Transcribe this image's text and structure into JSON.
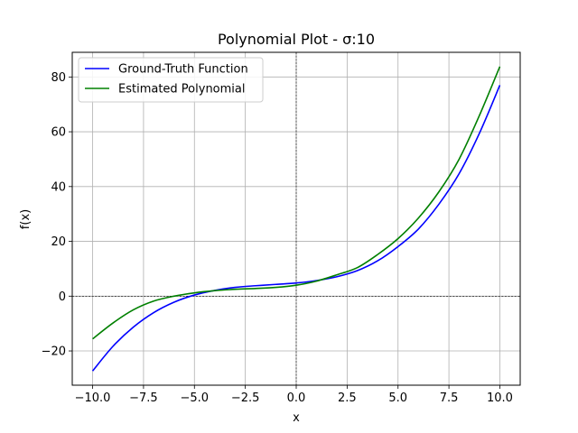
{
  "chart_data": {
    "type": "line",
    "title": "Polynomial Plot - σ:10",
    "xlabel": "x",
    "ylabel": "f(x)",
    "xlim": [
      -11,
      11
    ],
    "ylim": [
      -32.5,
      89.0
    ],
    "xticks": [
      -10.0,
      -7.5,
      -5.0,
      -2.5,
      0.0,
      2.5,
      5.0,
      7.5,
      10.0
    ],
    "xtick_labels": [
      "−10.0",
      "−7.5",
      "−5.0",
      "−2.5",
      "0.0",
      "2.5",
      "5.0",
      "7.5",
      "10.0"
    ],
    "yticks": [
      -20,
      0,
      20,
      40,
      60,
      80
    ],
    "ytick_labels": [
      "−20",
      "0",
      "20",
      "40",
      "60",
      "80"
    ],
    "grid": true,
    "legend_position": "top-left",
    "zero_lines": true,
    "series": [
      {
        "name": "Ground-Truth Function",
        "color": "#0000ff",
        "x": [
          -10,
          -9,
          -8,
          -7,
          -6,
          -5,
          -4,
          -3,
          -2,
          -1,
          0,
          1,
          2,
          3,
          4,
          5,
          6,
          7,
          8,
          9,
          10
        ],
        "y": [
          -27.3,
          -18.3,
          -11.3,
          -6.0,
          -2.2,
          0.4,
          2.1,
          3.2,
          3.8,
          4.3,
          4.8,
          5.7,
          7.1,
          9.3,
          12.9,
          18.1,
          24.5,
          33.5,
          44.7,
          59.5,
          77.0
        ]
      },
      {
        "name": "Estimated Polynomial",
        "color": "#008000",
        "x": [
          -10,
          -9,
          -8,
          -7,
          -6,
          -5,
          -4,
          -3,
          -2,
          -1,
          0,
          1,
          2,
          3,
          4,
          5,
          6,
          7,
          8,
          9,
          10
        ],
        "y": [
          -15.6,
          -9.8,
          -5.0,
          -1.8,
          0.0,
          1.2,
          2.0,
          2.5,
          2.8,
          3.2,
          4.0,
          5.5,
          7.8,
          10.4,
          15.2,
          21.0,
          28.5,
          38.0,
          50.0,
          66.0,
          83.8
        ]
      }
    ]
  }
}
